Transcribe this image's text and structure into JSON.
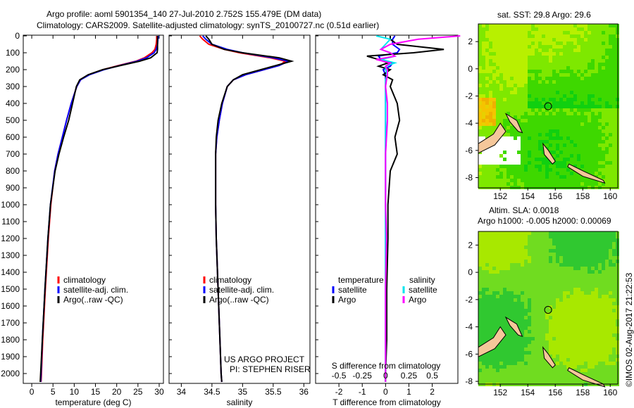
{
  "title_line1": "Argo profile: aoml 5901354_140 27-Jul-2010 2.752S 155.479E (DM data)",
  "title_line2": "Climatology: CARS2009. Satellite-adjusted climatology: synTS_20100727.nc (0.51d earlier)",
  "credit": "©IMOS 02-Aug-2017 21:22:53",
  "project": [
    "US ARGO PROJECT",
    "PI: STEPHEN RISER"
  ],
  "colors": {
    "clim": "#ff0000",
    "sat": "#0000ff",
    "argo": "#000000",
    "s_sat": "#00e5ee",
    "s_argo": "#ff00ff",
    "land": "#f5c79a"
  },
  "chart_data": [
    {
      "type": "line",
      "name": "temperature",
      "xlabel": "temperature (deg C)",
      "ylabel": "",
      "xlim": [
        -2,
        31
      ],
      "ylim": [
        2060,
        0
      ],
      "xticks": [
        0,
        5,
        10,
        15,
        20,
        25,
        30
      ],
      "yticks": [
        0,
        100,
        200,
        300,
        400,
        500,
        600,
        700,
        800,
        900,
        1000,
        1100,
        1200,
        1300,
        1400,
        1500,
        1600,
        1700,
        1800,
        1900,
        2000
      ],
      "legend": [
        "climatology",
        "satellite-adj. clim.",
        "Argo(..raw -QC)"
      ],
      "depth": [
        0,
        20,
        50,
        80,
        100,
        130,
        150,
        175,
        200,
        230,
        260,
        300,
        400,
        500,
        600,
        700,
        800,
        1000,
        1200,
        1500,
        1800,
        2000,
        2050
      ],
      "series": [
        {
          "name": "climatology",
          "values": [
            29.4,
            29.4,
            29.3,
            29.0,
            28.3,
            26.5,
            24.5,
            20.5,
            16.8,
            13.5,
            11.5,
            10.6,
            9.3,
            8.2,
            7.2,
            6.2,
            5.4,
            4.5,
            3.9,
            3.2,
            2.6,
            2.3,
            2.2
          ]
        },
        {
          "name": "satellite-adj. clim.",
          "values": [
            29.8,
            29.7,
            29.6,
            29.3,
            28.8,
            27.0,
            24.8,
            20.8,
            17.0,
            13.6,
            11.5,
            10.6,
            9.3,
            8.2,
            7.2,
            6.2,
            5.4,
            4.4,
            3.8,
            3.1,
            2.5,
            2.2,
            2.1
          ]
        },
        {
          "name": "Argo(..raw -QC)",
          "values": [
            29.6,
            29.6,
            29.6,
            29.6,
            29.5,
            28.0,
            25.4,
            21.0,
            16.7,
            13.3,
            11.3,
            10.5,
            9.6,
            8.7,
            7.5,
            6.4,
            5.5,
            4.4,
            3.8,
            3.1,
            2.5,
            2.1,
            2.0
          ]
        }
      ]
    },
    {
      "type": "line",
      "name": "salinity",
      "xlabel": "salinity",
      "xlim": [
        33.8,
        36.1
      ],
      "ylim": [
        2060,
        0
      ],
      "xticks": [
        34,
        34.5,
        35,
        35.5,
        36
      ],
      "legend": [
        "climatology",
        "satellite-adj. clim.",
        "Argo(..raw -QC)"
      ],
      "depth": [
        0,
        20,
        50,
        80,
        100,
        130,
        150,
        175,
        200,
        230,
        260,
        300,
        400,
        500,
        600,
        700,
        800,
        1000,
        1200,
        1500,
        1800,
        2000,
        2050
      ],
      "series": [
        {
          "name": "climatology",
          "values": [
            34.3,
            34.35,
            34.45,
            34.7,
            34.95,
            35.45,
            35.7,
            35.6,
            35.35,
            35.05,
            34.85,
            34.75,
            34.67,
            34.62,
            34.58,
            34.56,
            34.56,
            34.56,
            34.57,
            34.6,
            34.63,
            34.65,
            34.66
          ]
        },
        {
          "name": "satellite-adj. clim.",
          "values": [
            34.35,
            34.4,
            34.5,
            34.75,
            35.0,
            35.5,
            35.75,
            35.6,
            35.35,
            35.05,
            34.85,
            34.75,
            34.67,
            34.62,
            34.58,
            34.56,
            34.56,
            34.56,
            34.57,
            34.6,
            34.63,
            34.65,
            34.66
          ]
        },
        {
          "name": "Argo(..raw -QC)",
          "values": [
            34.4,
            34.45,
            34.5,
            34.7,
            35.0,
            35.6,
            35.8,
            35.55,
            35.3,
            35.0,
            34.85,
            34.75,
            34.66,
            34.6,
            34.57,
            34.56,
            34.56,
            34.56,
            34.57,
            34.6,
            34.63,
            34.65,
            34.66
          ]
        }
      ]
    },
    {
      "type": "line",
      "name": "difference",
      "xlabel": "T difference from climatology",
      "xlabel2": "S difference from climatology",
      "xlim": [
        -3,
        3.1
      ],
      "xlim2": [
        -0.75,
        0.775
      ],
      "ylim": [
        2060,
        0
      ],
      "xticks": [
        -2,
        -1,
        0,
        1,
        2
      ],
      "xticks2": [
        "-0.5",
        "-0.25",
        "0",
        "0.25",
        "0.5"
      ],
      "xticks2_values": [
        -0.5,
        -0.25,
        0,
        0.25,
        0.5
      ],
      "legend_titles": [
        "temperature",
        "salinity"
      ],
      "legend": [
        "satellite",
        "Argo",
        "satellite",
        "Argo"
      ],
      "depth": [
        0,
        20,
        50,
        80,
        100,
        120,
        140,
        160,
        180,
        200,
        230,
        260,
        300,
        400,
        500,
        600,
        700,
        800,
        1000,
        1200,
        1500,
        1800,
        2000,
        2050
      ],
      "series": [
        {
          "name": "T satellite",
          "values": [
            0.4,
            0.3,
            0.3,
            0.6,
            0.5,
            -0.3,
            -0.2,
            0.3,
            0.2,
            -0.1,
            0.0,
            0.0,
            0.0,
            0.0,
            0.0,
            0.0,
            0.0,
            0.0,
            0.0,
            0.0,
            0.0,
            0.0,
            0.0,
            0.0
          ]
        },
        {
          "name": "T Argo",
          "values": [
            0.2,
            0.2,
            0.5,
            2.5,
            1.2,
            -0.8,
            -0.3,
            0.1,
            -0.3,
            0.2,
            -0.1,
            0.3,
            0.2,
            0.5,
            0.6,
            0.4,
            0.5,
            0.2,
            0.1,
            0.1,
            0.05,
            0.05,
            0.0,
            0.0
          ]
        },
        {
          "name": "S satellite",
          "values": [
            -0.1,
            0.05,
            0.0,
            -0.05,
            0.05,
            0.1,
            -0.05,
            0.1,
            0.0,
            0.0,
            0.02,
            0.0,
            0.0,
            0.0,
            0.0,
            0.0,
            0.0,
            0.0,
            0.0,
            0.0,
            0.0,
            0.0,
            0.0,
            0.0
          ]
        },
        {
          "name": "S Argo",
          "values": [
            0.8,
            0.35,
            0.05,
            -0.05,
            0.05,
            0.1,
            -0.1,
            0.05,
            0.0,
            0.02,
            0.02,
            0.01,
            0.0,
            0.02,
            0.02,
            0.01,
            0.0,
            0.0,
            0.0,
            0.01,
            0.0,
            0.0,
            0.0,
            0.0
          ]
        }
      ]
    }
  ],
  "map1": {
    "title": "sat. SST: 29.8 Argo: 29.6",
    "xticks": [
      "152",
      "154",
      "156",
      "158",
      "160"
    ],
    "yticks": [
      "2",
      "0",
      "-2",
      "-4",
      "-6",
      "-8"
    ]
  },
  "map2": {
    "title1": "Altim. SLA: 0.0018",
    "title2": "Argo h1000: -0.005 h2000: 0.00069",
    "xticks": [
      "152",
      "154",
      "156",
      "158",
      "160"
    ],
    "yticks": [
      "2",
      "0",
      "-2",
      "-4",
      "-6",
      "-8"
    ]
  }
}
